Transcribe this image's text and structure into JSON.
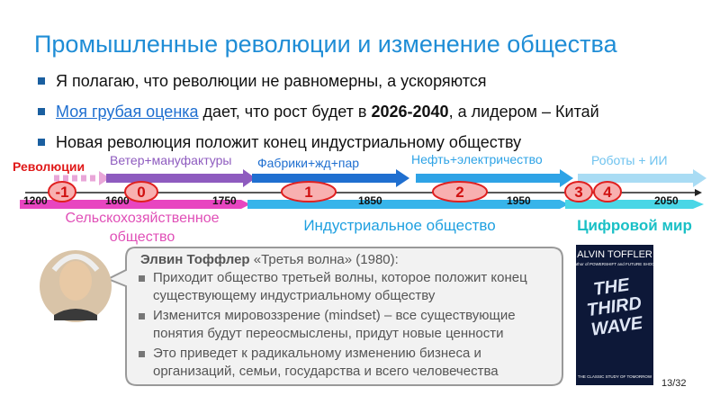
{
  "header": {
    "title": "Промышленные революции и изменение общества"
  },
  "bullets": [
    {
      "text": "Я полагаю, что революции не равномерны, а ускоряются"
    },
    {
      "link": "Моя грубая оценка",
      "text_a": " дает, что рост будет в ",
      "bold": "2026-2040",
      "text_b": ", а лидером – Китай"
    },
    {
      "text": "Новая революция положит конец индустриальному обществу"
    }
  ],
  "timeline": {
    "revolutions_label": "Революции",
    "waves": [
      "Ветер+мануфактуры",
      "Фабрики+жд+пар",
      "Нефть+электричество",
      "Роботы + ИИ"
    ],
    "years": [
      "1200",
      "1600",
      "1750",
      "1850",
      "1950",
      "2050"
    ],
    "revolutions": [
      "-1",
      "0",
      "1",
      "2",
      "3",
      "4"
    ],
    "eras": {
      "agrarian_1": "Сельскохозяйственное",
      "agrarian_2": "общество",
      "industrial": "Индустриальное общество",
      "digital": "Цифровой мир"
    }
  },
  "callout": {
    "author": "Элвин Тоффлер",
    "source": " «Третья волна» (1980):",
    "points": [
      "Приходит общество третьей волны, которое положит конец существующему индустриальному обществу",
      "Изменится мировоззрение (mindset) – все существующие понятия будут переосмыслены, придут новые ценности",
      "Это приведет к радикальному изменению бизнеса и организаций, семьи, государства и всего человечества"
    ]
  },
  "book": {
    "author": "ALVIN TOFFLER",
    "byline": "Author of POWERSHIFT and FUTURE SHOCK",
    "title_1": "THE",
    "title_2": "THIRD",
    "title_3": "WAVE",
    "tagline": "THE CLASSIC STUDY OF TOMORROW"
  },
  "footer": {
    "page": "13/32"
  }
}
